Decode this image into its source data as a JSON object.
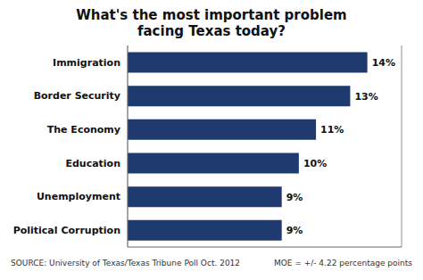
{
  "chart_data": {
    "type": "bar",
    "orientation": "horizontal",
    "title": "What's the most important problem\nfacing Texas today?",
    "categories": [
      "Political Corruption",
      "Unemployment",
      "Education",
      "The Economy",
      "Border Security",
      "Immigration"
    ],
    "values": [
      9,
      9,
      10,
      11,
      13,
      14
    ],
    "value_labels": [
      "9%",
      "9%",
      "10%",
      "11%",
      "13%",
      "14%"
    ],
    "data_labels": true,
    "color": "#1e3a6e",
    "xlim": [
      0,
      16
    ],
    "xticks": [
      0,
      5,
      10,
      15
    ],
    "grid": true,
    "tick_labels": "y",
    "annotations": [
      "SOURCE: University of Texas/Texas Tribune Poll Oct. 2012",
      "MOE = +/- 4.22 percentage points"
    ]
  }
}
